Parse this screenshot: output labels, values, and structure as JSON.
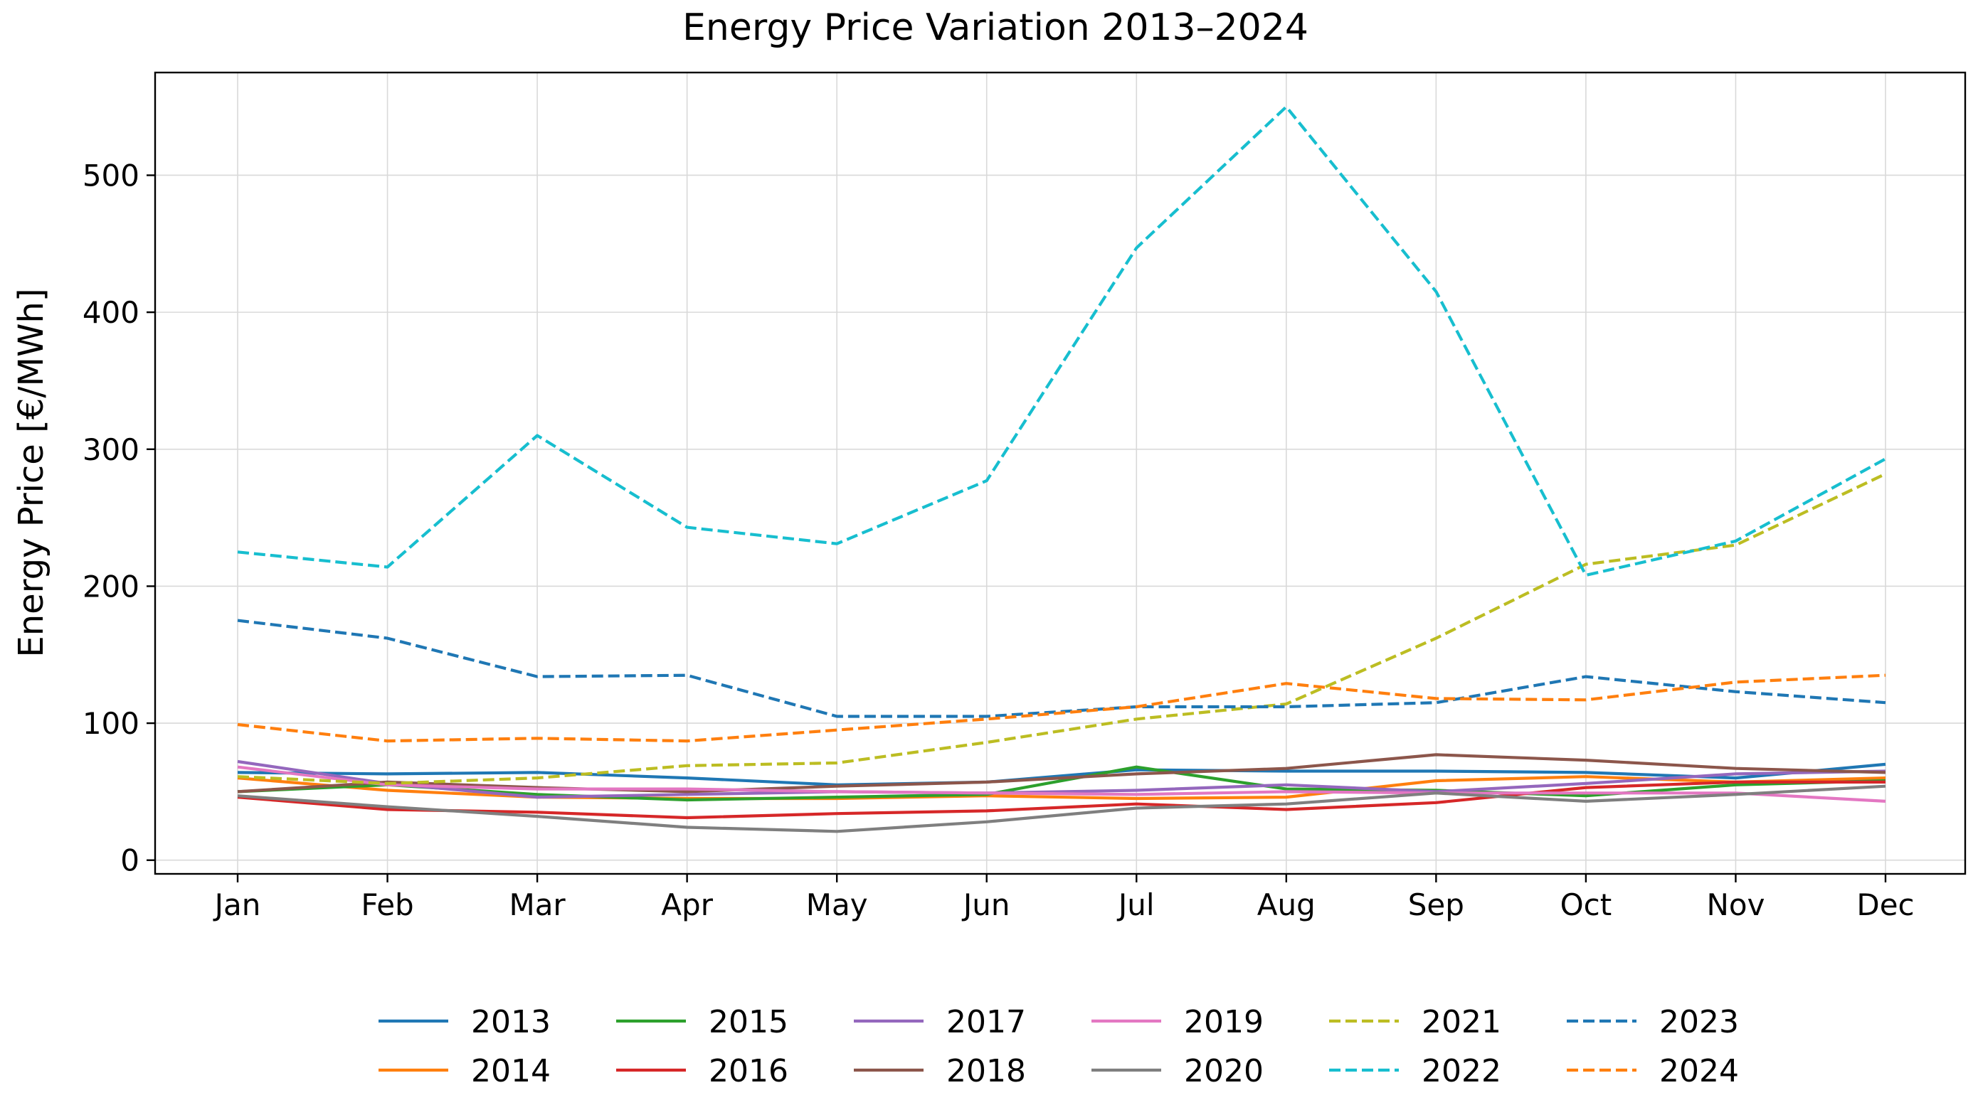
{
  "chart_data": {
    "type": "line",
    "title": "Energy Price Variation 2013–2024",
    "xlabel": "",
    "ylabel": "Energy Price [€/MWh]",
    "categories": [
      "Jan",
      "Feb",
      "Mar",
      "Apr",
      "May",
      "Jun",
      "Jul",
      "Aug",
      "Sep",
      "Oct",
      "Nov",
      "Dec"
    ],
    "ylim": [
      -10,
      575
    ],
    "yticks": [
      0,
      100,
      200,
      300,
      400,
      500
    ],
    "grid": true,
    "legend_position": "bottom-center",
    "series": [
      {
        "name": "2013",
        "color": "#1f77b4",
        "style": "solid",
        "values": [
          64,
          63,
          64,
          60,
          55,
          57,
          66,
          65,
          65,
          64,
          60,
          70
        ]
      },
      {
        "name": "2014",
        "color": "#ff7f0e",
        "style": "solid",
        "values": [
          60,
          51,
          46,
          45,
          45,
          47,
          45,
          46,
          58,
          61,
          57,
          60
        ]
      },
      {
        "name": "2015",
        "color": "#2ca02c",
        "style": "solid",
        "values": [
          50,
          55,
          48,
          44,
          46,
          48,
          68,
          52,
          51,
          47,
          55,
          58
        ]
      },
      {
        "name": "2016",
        "color": "#d62728",
        "style": "solid",
        "values": [
          46,
          37,
          35,
          31,
          34,
          36,
          41,
          37,
          42,
          53,
          57,
          57
        ]
      },
      {
        "name": "2017",
        "color": "#9467bd",
        "style": "solid",
        "values": [
          72,
          56,
          46,
          48,
          50,
          49,
          51,
          55,
          50,
          56,
          63,
          65
        ]
      },
      {
        "name": "2018",
        "color": "#8c564b",
        "style": "solid",
        "values": [
          50,
          57,
          53,
          50,
          54,
          57,
          63,
          67,
          77,
          73,
          67,
          64
        ]
      },
      {
        "name": "2019",
        "color": "#e377c2",
        "style": "solid",
        "values": [
          68,
          55,
          52,
          52,
          50,
          49,
          48,
          50,
          49,
          49,
          49,
          43
        ]
      },
      {
        "name": "2020",
        "color": "#7f7f7f",
        "style": "solid",
        "values": [
          47,
          39,
          32,
          24,
          21,
          28,
          38,
          41,
          49,
          43,
          48,
          54
        ]
      },
      {
        "name": "2021",
        "color": "#bcbd22",
        "style": "dashed",
        "values": [
          61,
          56,
          60,
          69,
          71,
          86,
          103,
          114,
          162,
          216,
          230,
          282
        ]
      },
      {
        "name": "2022",
        "color": "#17becf",
        "style": "dashed",
        "values": [
          225,
          214,
          310,
          243,
          231,
          277,
          447,
          550,
          415,
          208,
          233,
          293
        ]
      },
      {
        "name": "2023",
        "color": "#1f77b4",
        "style": "dashed",
        "values": [
          175,
          162,
          134,
          135,
          105,
          105,
          112,
          112,
          115,
          134,
          123,
          115
        ]
      },
      {
        "name": "2024",
        "color": "#ff7f0e",
        "style": "dashed",
        "values": [
          99,
          87,
          89,
          87,
          95,
          103,
          112,
          129,
          118,
          117,
          130,
          135
        ]
      }
    ]
  }
}
